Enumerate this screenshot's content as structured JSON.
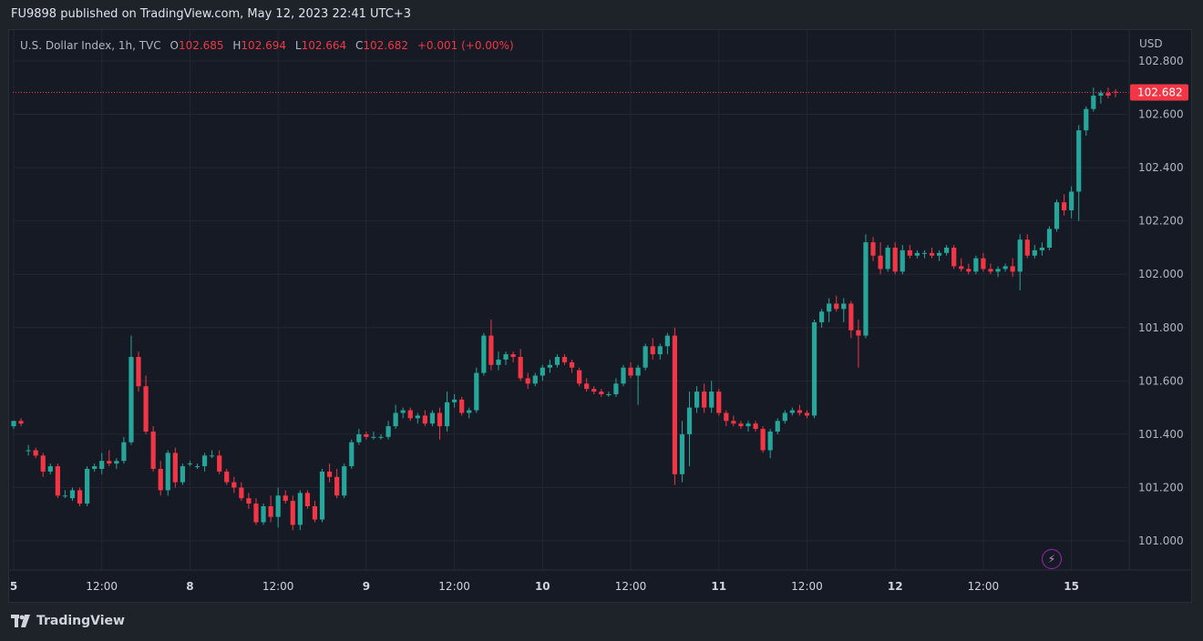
{
  "header": {
    "published": "FU9898 published on TradingView.com, May 12, 2023 22:41 UTC+3"
  },
  "legend": {
    "symbol": "U.S. Dollar Index, 1h, TVC",
    "o_key": "O",
    "o_val": "102.685",
    "h_key": "H",
    "h_val": "102.694",
    "l_key": "L",
    "l_val": "102.664",
    "c_key": "C",
    "c_val": "102.682",
    "change": "+0.001 (+0.00%)"
  },
  "axis": {
    "currency": "USD",
    "last_price_label": "102.682",
    "up_color": "#26a69a",
    "down_color": "#f23645"
  },
  "footer": {
    "brand": "TradingView"
  },
  "chart_data": {
    "type": "candlestick",
    "symbol": "U.S. Dollar Index",
    "interval": "1h",
    "ylim": [
      100.9,
      102.85
    ],
    "y_ticks": [
      "102.800",
      "102.600",
      "102.400",
      "102.200",
      "102.000",
      "101.800",
      "101.600",
      "101.400",
      "101.200",
      "101.000"
    ],
    "x_ticks": [
      {
        "label": "5",
        "idx": 0
      },
      {
        "label": "12:00",
        "idx": 12
      },
      {
        "label": "8",
        "idx": 24
      },
      {
        "label": "12:00",
        "idx": 36
      },
      {
        "label": "9",
        "idx": 48
      },
      {
        "label": "12:00",
        "idx": 60
      },
      {
        "label": "10",
        "idx": 72
      },
      {
        "label": "12:00",
        "idx": 84
      },
      {
        "label": "11",
        "idx": 96
      },
      {
        "label": "12:00",
        "idx": 108
      },
      {
        "label": "12",
        "idx": 120
      },
      {
        "label": "12:00",
        "idx": 132
      },
      {
        "label": "15",
        "idx": 144
      }
    ],
    "last_price": 102.682,
    "candles": [
      [
        101.43,
        101.45,
        101.42,
        101.45
      ],
      [
        101.45,
        101.46,
        101.43,
        101.44
      ],
      [
        101.34,
        101.36,
        101.32,
        101.34
      ],
      [
        101.34,
        101.35,
        101.31,
        101.32
      ],
      [
        101.32,
        101.33,
        101.24,
        101.26
      ],
      [
        101.26,
        101.29,
        101.25,
        101.28
      ],
      [
        101.28,
        101.29,
        101.16,
        101.17
      ],
      [
        101.17,
        101.19,
        101.16,
        101.17
      ],
      [
        101.16,
        101.2,
        101.15,
        101.19
      ],
      [
        101.19,
        101.2,
        101.13,
        101.14
      ],
      [
        101.14,
        101.28,
        101.13,
        101.27
      ],
      [
        101.27,
        101.29,
        101.26,
        101.28
      ],
      [
        101.27,
        101.33,
        101.25,
        101.3
      ],
      [
        101.3,
        101.34,
        101.28,
        101.29
      ],
      [
        101.29,
        101.31,
        101.27,
        101.3
      ],
      [
        101.3,
        101.39,
        101.29,
        101.37
      ],
      [
        101.37,
        101.77,
        101.36,
        101.69
      ],
      [
        101.69,
        101.71,
        101.56,
        101.58
      ],
      [
        101.58,
        101.62,
        101.4,
        101.41
      ],
      [
        101.41,
        101.43,
        101.26,
        101.27
      ],
      [
        101.27,
        101.3,
        101.17,
        101.19
      ],
      [
        101.19,
        101.34,
        101.17,
        101.33
      ],
      [
        101.33,
        101.35,
        101.2,
        101.22
      ],
      [
        101.22,
        101.29,
        101.21,
        101.28
      ],
      [
        101.29,
        101.3,
        101.28,
        101.29
      ],
      [
        101.28,
        101.29,
        101.27,
        101.28
      ],
      [
        101.28,
        101.33,
        101.26,
        101.32
      ],
      [
        101.32,
        101.34,
        101.31,
        101.32
      ],
      [
        101.32,
        101.34,
        101.25,
        101.26
      ],
      [
        101.26,
        101.27,
        101.21,
        101.22
      ],
      [
        101.22,
        101.24,
        101.18,
        101.2
      ],
      [
        101.2,
        101.22,
        101.15,
        101.16
      ],
      [
        101.16,
        101.18,
        101.12,
        101.14
      ],
      [
        101.14,
        101.16,
        101.06,
        101.07
      ],
      [
        101.07,
        101.14,
        101.06,
        101.13
      ],
      [
        101.13,
        101.17,
        101.07,
        101.09
      ],
      [
        101.09,
        101.2,
        101.05,
        101.17
      ],
      [
        101.17,
        101.19,
        101.14,
        101.15
      ],
      [
        101.15,
        101.17,
        101.04,
        101.06
      ],
      [
        101.06,
        101.19,
        101.04,
        101.18
      ],
      [
        101.18,
        101.19,
        101.12,
        101.13
      ],
      [
        101.13,
        101.15,
        101.07,
        101.08
      ],
      [
        101.08,
        101.27,
        101.07,
        101.26
      ],
      [
        101.26,
        101.29,
        101.22,
        101.24
      ],
      [
        101.24,
        101.27,
        101.16,
        101.17
      ],
      [
        101.17,
        101.29,
        101.16,
        101.28
      ],
      [
        101.28,
        101.38,
        101.27,
        101.37
      ],
      [
        101.37,
        101.42,
        101.36,
        101.4
      ],
      [
        101.4,
        101.41,
        101.38,
        101.39
      ],
      [
        101.39,
        101.41,
        101.38,
        101.39
      ],
      [
        101.39,
        101.4,
        101.38,
        101.39
      ],
      [
        101.39,
        101.45,
        101.38,
        101.43
      ],
      [
        101.43,
        101.51,
        101.42,
        101.48
      ],
      [
        101.48,
        101.5,
        101.46,
        101.49
      ],
      [
        101.49,
        101.5,
        101.45,
        101.46
      ],
      [
        101.46,
        101.48,
        101.44,
        101.47
      ],
      [
        101.47,
        101.49,
        101.43,
        101.44
      ],
      [
        101.44,
        101.49,
        101.43,
        101.48
      ],
      [
        101.48,
        101.5,
        101.38,
        101.43
      ],
      [
        101.43,
        101.56,
        101.41,
        101.52
      ],
      [
        101.52,
        101.55,
        101.5,
        101.53
      ],
      [
        101.53,
        101.54,
        101.47,
        101.48
      ],
      [
        101.48,
        101.5,
        101.46,
        101.49
      ],
      [
        101.49,
        101.65,
        101.48,
        101.63
      ],
      [
        101.63,
        101.78,
        101.62,
        101.77
      ],
      [
        101.77,
        101.83,
        101.64,
        101.66
      ],
      [
        101.66,
        101.71,
        101.64,
        101.68
      ],
      [
        101.68,
        101.71,
        101.66,
        101.7
      ],
      [
        101.7,
        101.71,
        101.67,
        101.69
      ],
      [
        101.69,
        101.72,
        101.6,
        101.61
      ],
      [
        101.61,
        101.63,
        101.57,
        101.59
      ],
      [
        101.59,
        101.63,
        101.58,
        101.62
      ],
      [
        101.62,
        101.66,
        101.6,
        101.65
      ],
      [
        101.65,
        101.68,
        101.63,
        101.66
      ],
      [
        101.66,
        101.7,
        101.65,
        101.69
      ],
      [
        101.69,
        101.7,
        101.66,
        101.67
      ],
      [
        101.67,
        101.68,
        101.63,
        101.65
      ],
      [
        101.64,
        101.65,
        101.58,
        101.59
      ],
      [
        101.59,
        101.61,
        101.56,
        101.57
      ],
      [
        101.57,
        101.58,
        101.55,
        101.56
      ],
      [
        101.56,
        101.57,
        101.54,
        101.55
      ],
      [
        101.55,
        101.56,
        101.54,
        101.55
      ],
      [
        101.55,
        101.61,
        101.54,
        101.59
      ],
      [
        101.59,
        101.66,
        101.58,
        101.65
      ],
      [
        101.65,
        101.67,
        101.61,
        101.62
      ],
      [
        101.62,
        101.66,
        101.51,
        101.65
      ],
      [
        101.65,
        101.74,
        101.64,
        101.73
      ],
      [
        101.73,
        101.76,
        101.68,
        101.7
      ],
      [
        101.7,
        101.74,
        101.68,
        101.73
      ],
      [
        101.73,
        101.78,
        101.7,
        101.77
      ],
      [
        101.77,
        101.8,
        101.21,
        101.25
      ],
      [
        101.25,
        101.45,
        101.22,
        101.4
      ],
      [
        101.4,
        101.56,
        101.28,
        101.5
      ],
      [
        101.5,
        101.58,
        101.48,
        101.56
      ],
      [
        101.56,
        101.59,
        101.48,
        101.5
      ],
      [
        101.5,
        101.6,
        101.48,
        101.56
      ],
      [
        101.56,
        101.57,
        101.47,
        101.48
      ],
      [
        101.48,
        101.49,
        101.43,
        101.45
      ],
      [
        101.45,
        101.47,
        101.43,
        101.44
      ],
      [
        101.44,
        101.45,
        101.42,
        101.43
      ],
      [
        101.43,
        101.45,
        101.41,
        101.44
      ],
      [
        101.44,
        101.45,
        101.41,
        101.42
      ],
      [
        101.42,
        101.43,
        101.33,
        101.34
      ],
      [
        101.34,
        101.42,
        101.31,
        101.41
      ],
      [
        101.41,
        101.46,
        101.4,
        101.45
      ],
      [
        101.45,
        101.49,
        101.44,
        101.48
      ],
      [
        101.48,
        101.5,
        101.47,
        101.49
      ],
      [
        101.49,
        101.51,
        101.47,
        101.48
      ],
      [
        101.48,
        101.49,
        101.46,
        101.47
      ],
      [
        101.47,
        101.83,
        101.46,
        101.82
      ],
      [
        101.82,
        101.87,
        101.8,
        101.86
      ],
      [
        101.86,
        101.91,
        101.82,
        101.89
      ],
      [
        101.89,
        101.92,
        101.86,
        101.87
      ],
      [
        101.87,
        101.91,
        101.82,
        101.89
      ],
      [
        101.89,
        101.9,
        101.76,
        101.79
      ],
      [
        101.79,
        101.83,
        101.65,
        101.77
      ],
      [
        101.77,
        102.15,
        101.76,
        102.12
      ],
      [
        102.12,
        102.14,
        102.05,
        102.07
      ],
      [
        102.07,
        102.12,
        102.0,
        102.02
      ],
      [
        102.02,
        102.11,
        102.01,
        102.1
      ],
      [
        102.1,
        102.12,
        102.0,
        102.01
      ],
      [
        102.01,
        102.11,
        102.0,
        102.09
      ],
      [
        102.09,
        102.11,
        102.06,
        102.07
      ],
      [
        102.07,
        102.09,
        102.06,
        102.08
      ],
      [
        102.08,
        102.09,
        102.06,
        102.08
      ],
      [
        102.08,
        102.1,
        102.06,
        102.07
      ],
      [
        102.07,
        102.09,
        102.05,
        102.08
      ],
      [
        102.08,
        102.11,
        102.07,
        102.1
      ],
      [
        102.1,
        102.11,
        102.02,
        102.03
      ],
      [
        102.03,
        102.06,
        102.01,
        102.02
      ],
      [
        102.02,
        102.04,
        102.0,
        102.01
      ],
      [
        102.01,
        102.07,
        102.0,
        102.06
      ],
      [
        102.06,
        102.08,
        102.01,
        102.02
      ],
      [
        102.02,
        102.04,
        102.0,
        102.01
      ],
      [
        102.01,
        102.03,
        101.99,
        102.02
      ],
      [
        102.02,
        102.04,
        102.01,
        102.03
      ],
      [
        102.03,
        102.06,
        101.99,
        102.01
      ],
      [
        102.01,
        102.15,
        101.94,
        102.13
      ],
      [
        102.13,
        102.15,
        102.06,
        102.07
      ],
      [
        102.07,
        102.11,
        102.06,
        102.09
      ],
      [
        102.09,
        102.12,
        102.07,
        102.1
      ],
      [
        102.1,
        102.18,
        102.09,
        102.17
      ],
      [
        102.17,
        102.28,
        102.16,
        102.27
      ],
      [
        102.27,
        102.3,
        102.22,
        102.24
      ],
      [
        102.24,
        102.33,
        102.21,
        102.31
      ],
      [
        102.31,
        102.56,
        102.2,
        102.54
      ],
      [
        102.54,
        102.63,
        102.52,
        102.62
      ],
      [
        102.62,
        102.7,
        102.61,
        102.67
      ],
      [
        102.67,
        102.69,
        102.64,
        102.68
      ],
      [
        102.68,
        102.7,
        102.66,
        102.67
      ],
      [
        102.685,
        102.694,
        102.664,
        102.682
      ]
    ]
  }
}
